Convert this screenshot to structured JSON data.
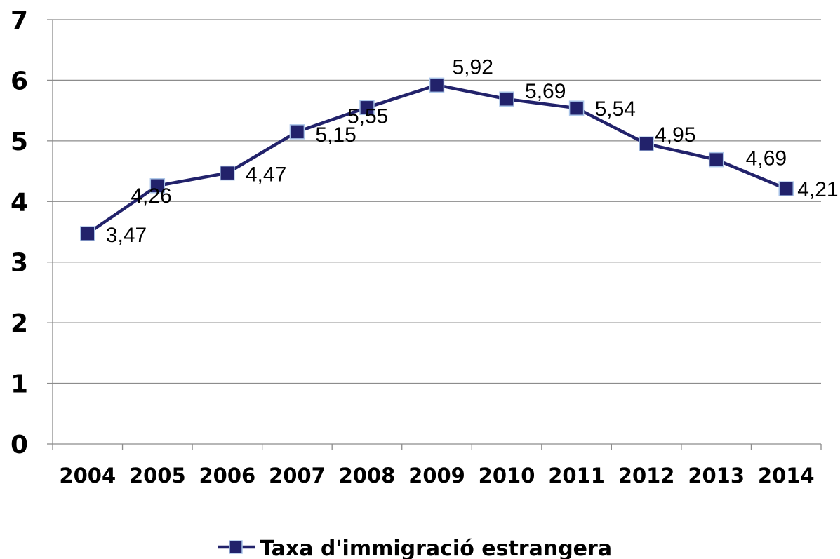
{
  "chart_data": {
    "type": "line",
    "title": "",
    "xlabel": "",
    "ylabel": "",
    "categories": [
      "2004",
      "2005",
      "2006",
      "2007",
      "2008",
      "2009",
      "2010",
      "2011",
      "2012",
      "2013",
      "2014"
    ],
    "series": [
      {
        "name": "Taxa d'immigració estrangera",
        "values": [
          3.47,
          4.26,
          4.47,
          5.15,
          5.55,
          5.92,
          5.69,
          5.54,
          4.95,
          4.69,
          4.21
        ],
        "data_labels": [
          "3,47",
          "4,26",
          "4,47",
          "5,15",
          "5,55",
          "5,92",
          "5,69",
          "5,54",
          "4,95",
          "4,69",
          "4,21"
        ],
        "color": "#22226b",
        "marker": "square"
      }
    ],
    "ylim": [
      0,
      7
    ],
    "yticks": [
      "0",
      "1",
      "2",
      "3",
      "4",
      "5",
      "6",
      "7"
    ],
    "grid": true,
    "legend_position": "bottom",
    "gridline_color": "#8c8c8c"
  }
}
